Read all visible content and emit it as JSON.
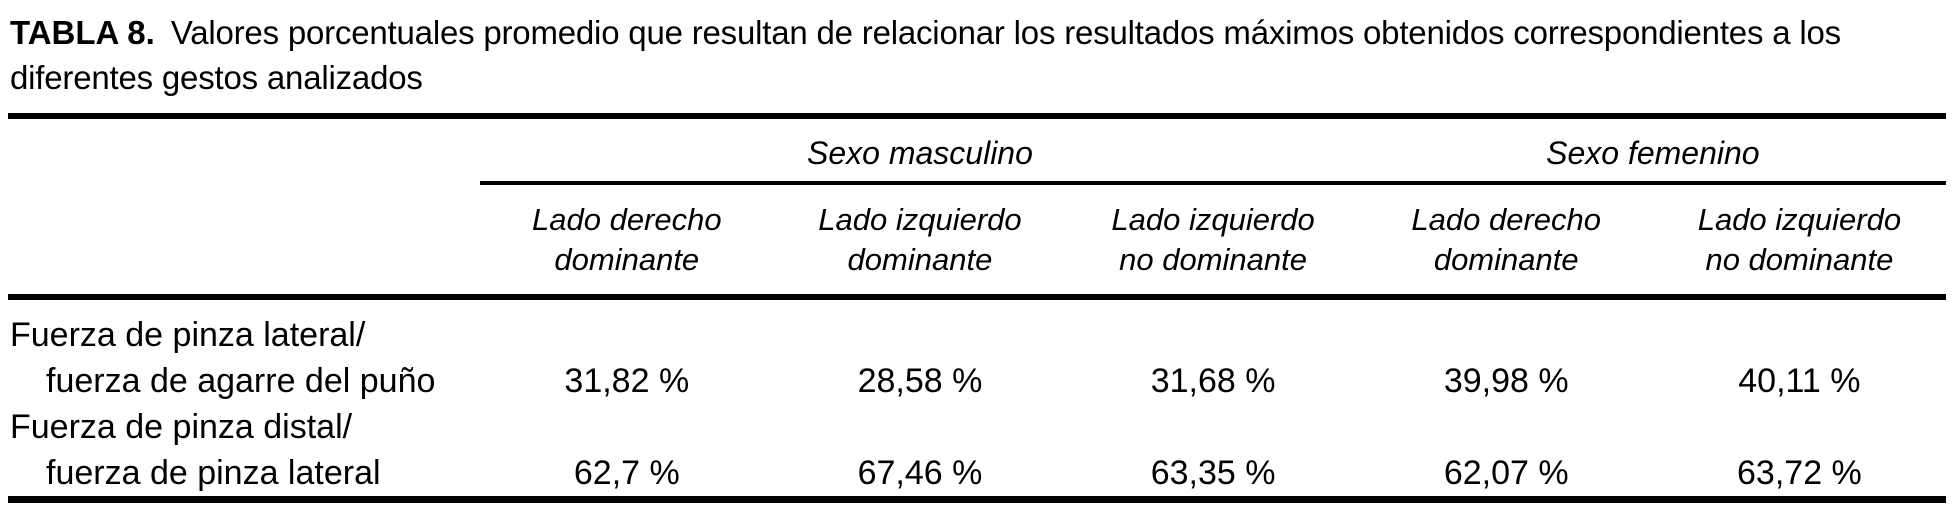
{
  "caption": {
    "label": "TABLA 8.",
    "text_line1": "Valores porcentuales promedio que resultan de relacionar los resultados máximos obtenidos correspondientes a los",
    "text_line2": "diferentes gestos analizados"
  },
  "table": {
    "groups": [
      {
        "label": "Sexo masculino",
        "colspan": 3
      },
      {
        "label": "Sexo femenino",
        "colspan": 2
      }
    ],
    "columns": [
      {
        "line1": "Lado derecho",
        "line2": "dominante"
      },
      {
        "line1": "Lado izquierdo",
        "line2": "dominante"
      },
      {
        "line1": "Lado izquierdo",
        "line2": "no dominante"
      },
      {
        "line1": "Lado derecho",
        "line2": "dominante"
      },
      {
        "line1": "Lado izquierdo",
        "line2": "no dominante"
      }
    ],
    "rows": [
      {
        "label_line1": "Fuerza de pinza lateral/",
        "label_line2": "fuerza de agarre del puño",
        "values": [
          "31,82 %",
          "28,58 %",
          "31,68 %",
          "39,98 %",
          "40,11 %"
        ]
      },
      {
        "label_line1": "Fuerza de pinza distal/",
        "label_line2": "fuerza de pinza lateral",
        "values": [
          "62,7 %",
          "67,46 %",
          "63,35 %",
          "62,07 %",
          "63,72 %"
        ]
      }
    ]
  },
  "chart_data": {
    "type": "table",
    "title": "TABLA 8. Valores porcentuales promedio que resultan de relacionar los resultados máximos obtenidos correspondientes a los diferentes gestos analizados",
    "column_groups": [
      "Sexo masculino",
      "Sexo masculino",
      "Sexo masculino",
      "Sexo femenino",
      "Sexo femenino"
    ],
    "categories": [
      "Lado derecho dominante",
      "Lado izquierdo dominante",
      "Lado izquierdo no dominante",
      "Lado derecho dominante",
      "Lado izquierdo no dominante"
    ],
    "series": [
      {
        "name": "Fuerza de pinza lateral/fuerza de agarre del puño",
        "values": [
          31.82,
          28.58,
          31.68,
          39.98,
          40.11
        ]
      },
      {
        "name": "Fuerza de pinza distal/fuerza de pinza lateral",
        "values": [
          62.7,
          67.46,
          63.35,
          62.07,
          63.72
        ]
      }
    ],
    "unit": "%"
  },
  "colors": {
    "text": "#000000",
    "background": "#ffffff",
    "rule": "#000000"
  }
}
